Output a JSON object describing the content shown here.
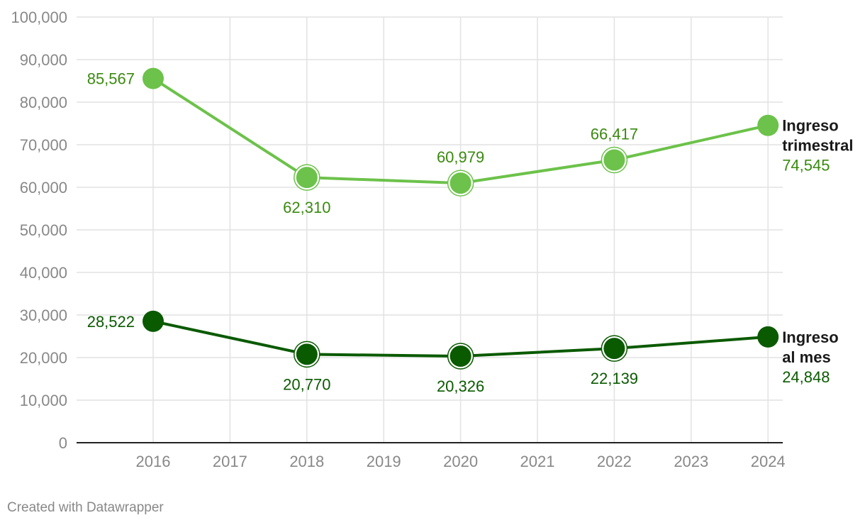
{
  "chart_data": {
    "type": "line",
    "title": "",
    "xlabel": "",
    "ylabel": "",
    "x": [
      2016,
      2017,
      2018,
      2019,
      2020,
      2021,
      2022,
      2023,
      2024
    ],
    "x_tick_labels": [
      "2016",
      "2017",
      "2018",
      "2019",
      "2020",
      "2021",
      "2022",
      "2023",
      "2024"
    ],
    "ylim": [
      0,
      100000
    ],
    "y_ticks": [
      0,
      10000,
      20000,
      30000,
      40000,
      50000,
      60000,
      70000,
      80000,
      90000,
      100000
    ],
    "y_tick_labels": [
      "0",
      "10,000",
      "20,000",
      "30,000",
      "40,000",
      "50,000",
      "60,000",
      "70,000",
      "80,000",
      "90,000",
      "100,000"
    ],
    "grid": true,
    "series": [
      {
        "name": "Ingreso trimestral",
        "name_lines": [
          "Ingreso",
          "trimestral"
        ],
        "color": "#6cc24a",
        "label_color": "#3a8a10",
        "points": [
          {
            "x": 2016,
            "y": 85567,
            "label": "85,567",
            "label_pos": "left"
          },
          {
            "x": 2018,
            "y": 62310,
            "label": "62,310",
            "label_pos": "below"
          },
          {
            "x": 2020,
            "y": 60979,
            "label": "60,979",
            "label_pos": "above"
          },
          {
            "x": 2022,
            "y": 66417,
            "label": "66,417",
            "label_pos": "above"
          },
          {
            "x": 2024,
            "y": 74545,
            "label": "74,545",
            "label_pos": "end"
          }
        ]
      },
      {
        "name": "Ingreso al mes",
        "name_lines": [
          "Ingreso",
          "al mes"
        ],
        "color": "#0a5a00",
        "label_color": "#0a5a00",
        "points": [
          {
            "x": 2016,
            "y": 28522,
            "label": "28,522",
            "label_pos": "left"
          },
          {
            "x": 2018,
            "y": 20770,
            "label": "20,770",
            "label_pos": "below"
          },
          {
            "x": 2020,
            "y": 20326,
            "label": "20,326",
            "label_pos": "below"
          },
          {
            "x": 2022,
            "y": 22139,
            "label": "22,139",
            "label_pos": "below"
          },
          {
            "x": 2024,
            "y": 24848,
            "label": "24,848",
            "label_pos": "end"
          }
        ]
      }
    ]
  },
  "footer": {
    "credit": "Created with Datawrapper"
  }
}
